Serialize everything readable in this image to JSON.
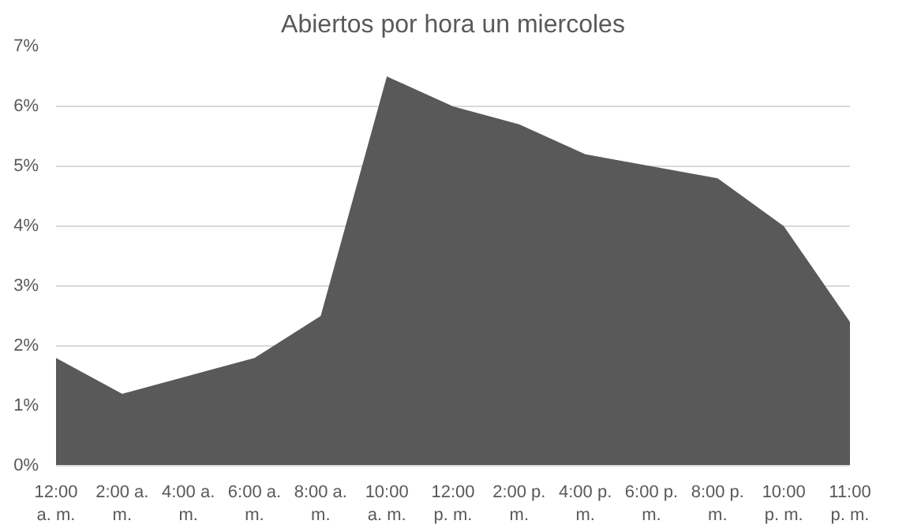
{
  "chart_data": {
    "type": "area",
    "title": "Abiertos por hora un miercoles",
    "categories": [
      "12:00 a. m.",
      "2:00 a. m.",
      "4:00 a. m.",
      "6:00 a. m.",
      "8:00 a. m.",
      "10:00 a. m.",
      "12:00 p. m.",
      "2:00 p. m.",
      "4:00 p. m.",
      "6:00 p. m.",
      "8:00 p. m.",
      "10:00 p. m.",
      "11:00 p. m."
    ],
    "series": [
      {
        "color": "#595959",
        "values": [
          1.8,
          1.2,
          1.5,
          1.8,
          2.5,
          6.5,
          6.0,
          5.7,
          5.2,
          5.0,
          4.8,
          4.0,
          2.4
        ]
      }
    ],
    "ylim": [
      0,
      7
    ],
    "yticks": [
      {
        "value": 0,
        "label": "0%"
      },
      {
        "value": 1,
        "label": "1%"
      },
      {
        "value": 2,
        "label": "2%"
      },
      {
        "value": 3,
        "label": "3%"
      },
      {
        "value": 4,
        "label": "4%"
      },
      {
        "value": 5,
        "label": "5%"
      },
      {
        "value": 6,
        "label": "6%"
      },
      {
        "value": 7,
        "label": "7%"
      }
    ],
    "grid": "y"
  }
}
